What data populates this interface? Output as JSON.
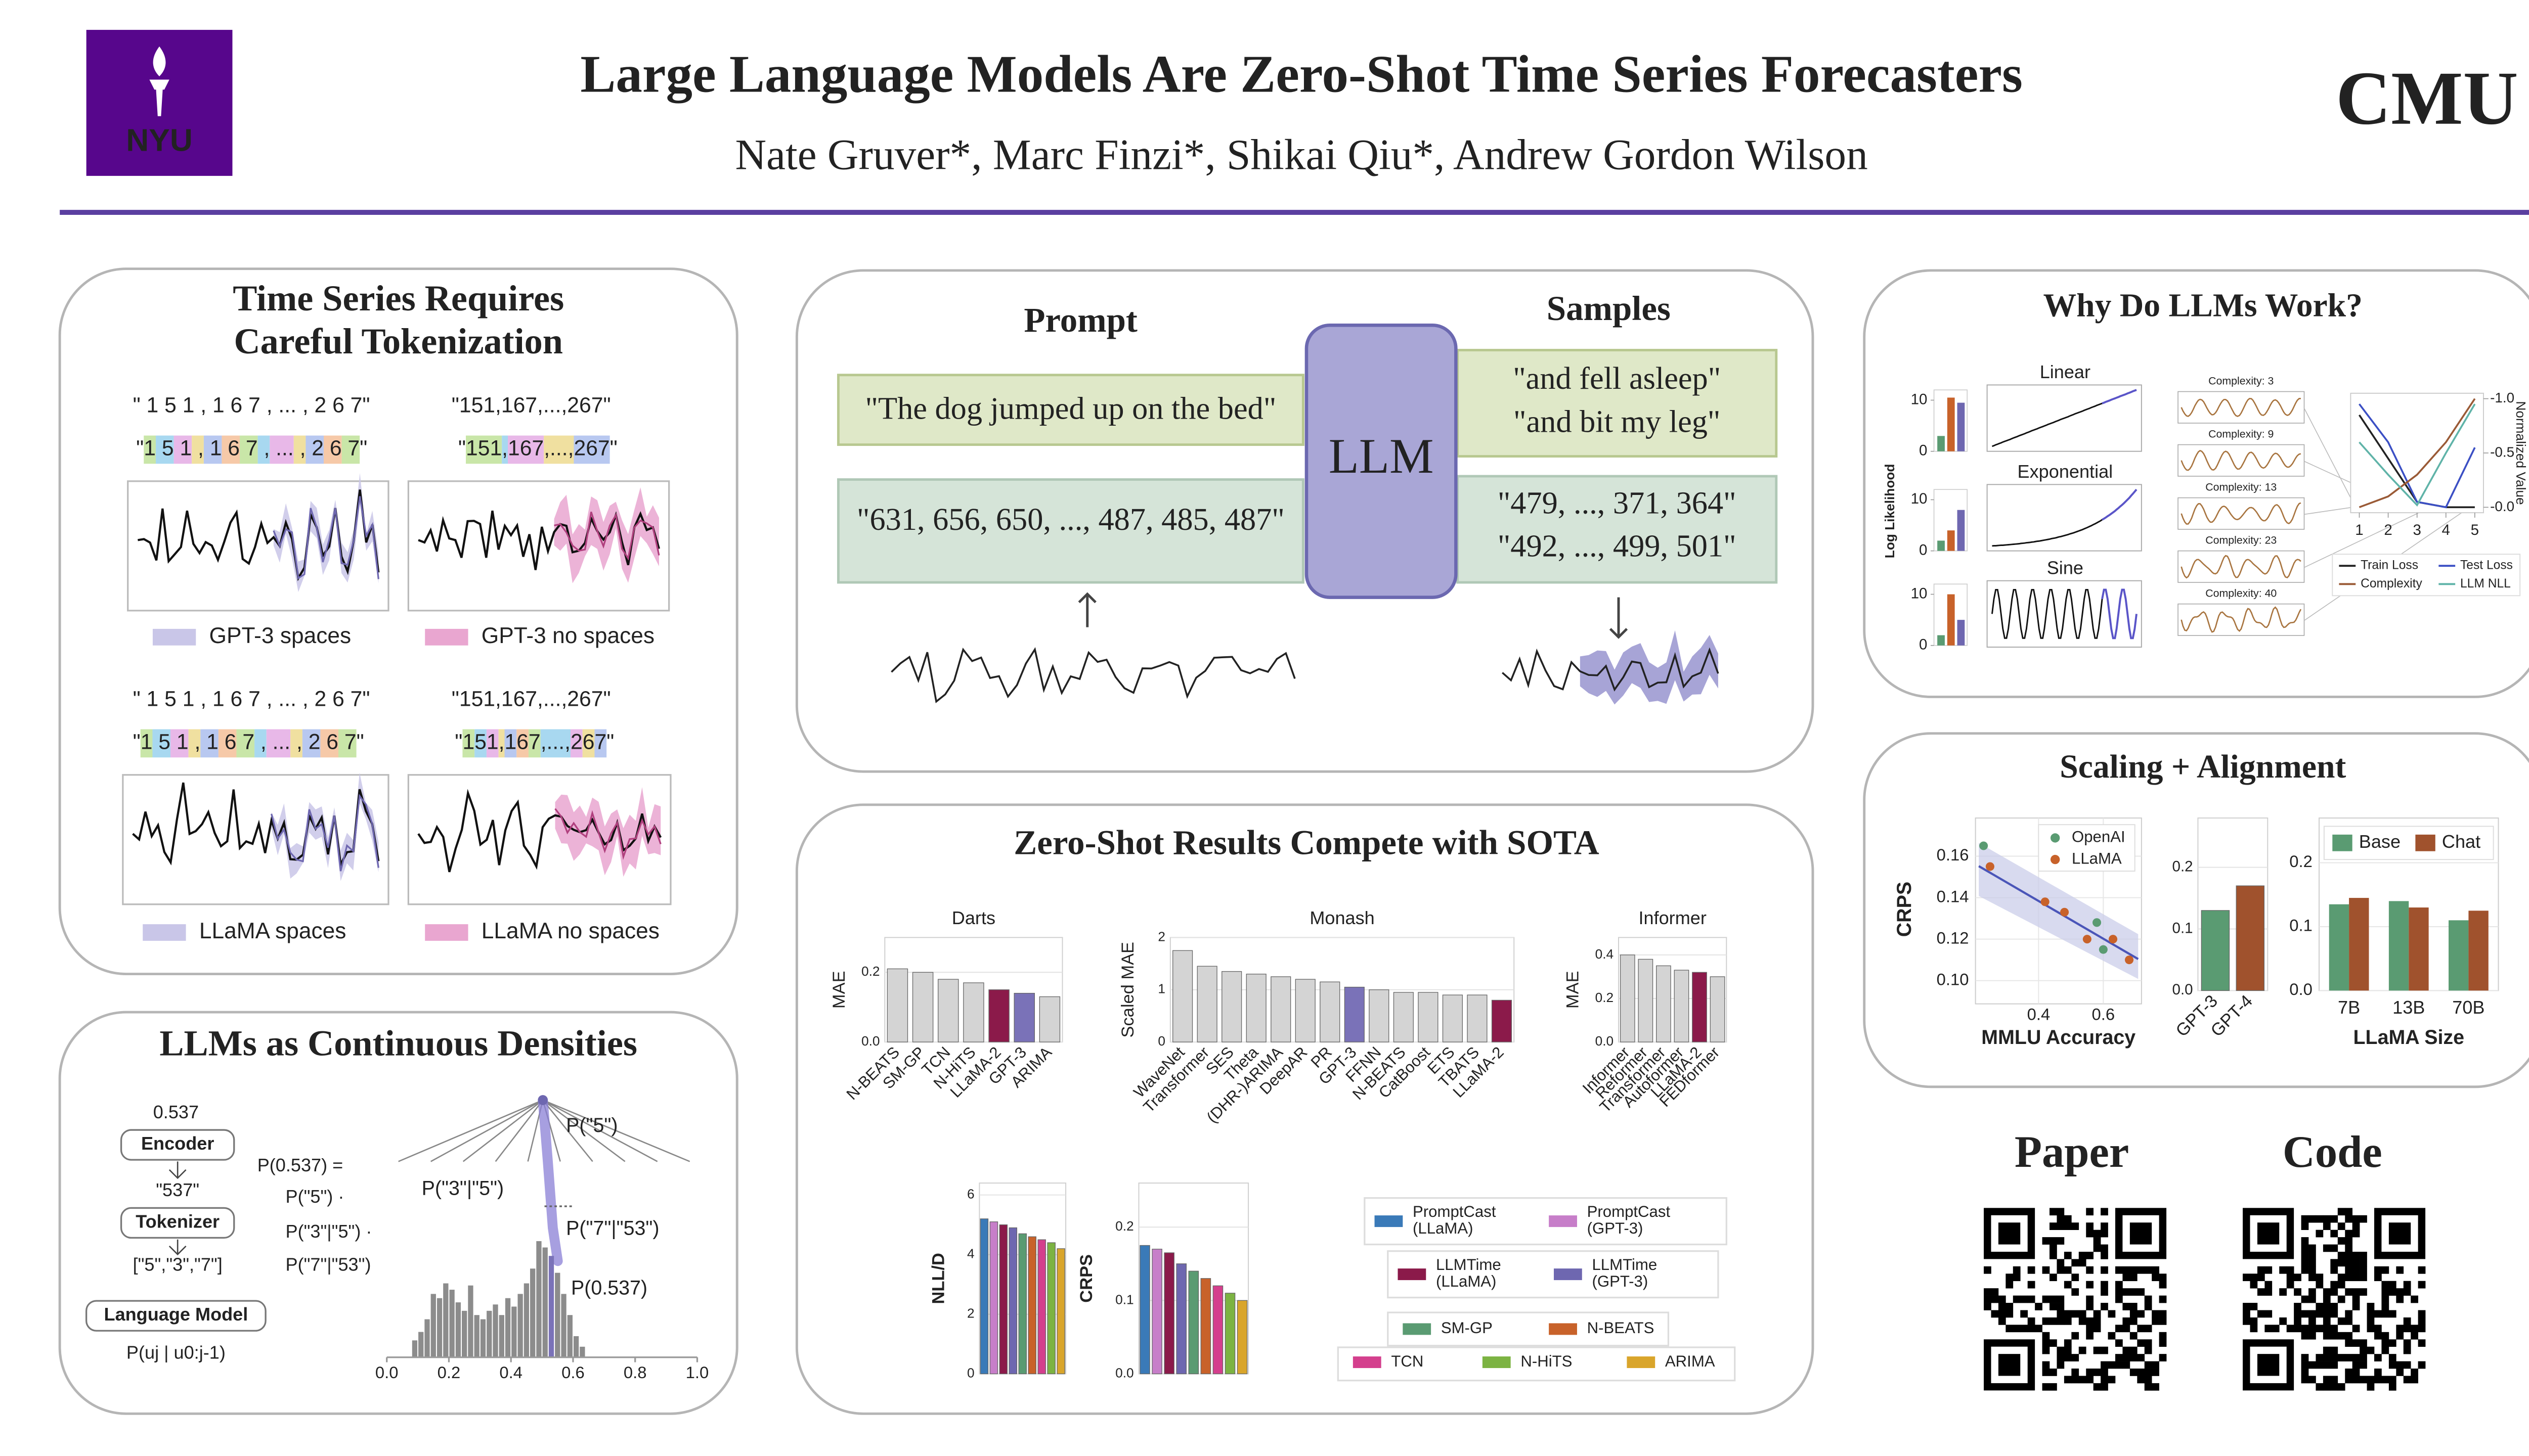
{
  "header": {
    "logo_left": "NYU",
    "title": "Large Language Models Are Zero-Shot Time Series Forecasters",
    "authors": "Nate Gruver*, Marc Finzi*, Shikai Qiu*, Andrew Gordon Wilson",
    "logo_right": "CMU"
  },
  "tokenization": {
    "title": [
      "Time Series Requires",
      "Careful Tokenization"
    ],
    "examples": [
      {
        "raw": "\" 1 5 1 , 1 6 7 , ... , 2 6 7\"",
        "tokens": [
          "\"",
          "1",
          " 5",
          " 1",
          " ,",
          " 1",
          " 6",
          " 7",
          " ,",
          " ...",
          " ,",
          " 2",
          " 6",
          " 7",
          "\""
        ],
        "legend": "GPT-3 spaces"
      },
      {
        "raw": "\"151,167,...,267\"",
        "tokens": [
          "\"",
          "151",
          ",",
          "167",
          ",...,",
          "267",
          "\""
        ],
        "legend": "GPT-3 no spaces"
      },
      {
        "raw": "\" 1 5 1 , 1 6 7 , ... , 2 6 7\"",
        "tokens": [
          "\"",
          "1",
          " 5",
          " 1",
          " ,",
          " 1",
          " 6",
          " 7",
          " ,",
          " ...",
          " ,",
          " 2",
          " 6",
          " 7",
          "\""
        ],
        "legend": "LLaMA spaces"
      },
      {
        "raw": "\"151,167,...,267\"",
        "tokens": [
          "\"",
          "1",
          "5",
          "1",
          ",",
          "1",
          "6",
          "7",
          ",...,",
          "2",
          "6",
          "7",
          "\""
        ],
        "legend": "LLaMA no spaces"
      }
    ]
  },
  "densities": {
    "title": "LLMs as Continuous Densities",
    "input": "0.537",
    "encoder": "Encoder",
    "encoded": "\"537\"",
    "tokenizer": "Tokenizer",
    "tokens": "[\"5\",\"3\",\"7\"]",
    "model": "Language Model",
    "conditional": "P(uj | u0:j-1)",
    "decomposition": [
      "P(0.537) =",
      "P(\"5\") ·",
      "P(\"3\"|\"5\") ·",
      "P(\"7\"|\"53\")"
    ],
    "tree_labels": [
      "P(\"5\")",
      "P(\"3\"|\"5\")",
      "P(\"7\"|\"53\")",
      "P(0.537)"
    ],
    "histogram": {
      "bins": [
        0.08,
        0.1,
        0.12,
        0.14,
        0.16,
        0.18,
        0.2,
        0.22,
        0.24,
        0.26,
        0.28,
        0.3,
        0.32,
        0.34,
        0.36,
        0.38,
        0.4,
        0.42,
        0.44,
        0.46,
        0.48,
        0.5,
        0.52,
        0.54,
        0.56,
        0.58,
        0.6,
        0.62,
        0.64
      ],
      "counts": [
        8,
        12,
        18,
        30,
        28,
        35,
        32,
        26,
        22,
        34,
        20,
        18,
        22,
        25,
        20,
        28,
        24,
        30,
        35,
        42,
        55,
        52,
        48,
        40,
        30,
        20,
        10,
        5
      ],
      "xlim": [
        0,
        1
      ],
      "xticks": [
        {
          "value": 0,
          "label": "0.0"
        },
        0.2,
        0.4,
        0.6,
        0.8,
        {
          "value": 1,
          "label": "1.0"
        }
      ]
    }
  },
  "prompting": {
    "prompt_heading": "Prompt",
    "samples_heading": "Samples",
    "model": "LLM",
    "text_prompt": "\"The dog jumped up on the bed\"",
    "text_samples": [
      "\"and fell asleep\"",
      "\"and bit my leg\""
    ],
    "series_prompt": "\"631, 656, 650, ..., 487, 485, 487\"",
    "series_samples": [
      "\"479, ..., 371, 364\"",
      "\"492, ..., 499, 501\""
    ]
  },
  "results": {
    "title": "Zero-Shot Results Compete with SOTA",
    "darts": {
      "title": "Darts",
      "ylabel": "MAE",
      "categories": [
        "N-BEATS",
        "SM-GP",
        "TCN",
        "N-HiTS",
        "LLaMA-2",
        "GPT-3",
        "ARIMA"
      ],
      "values": [
        0.21,
        0.2,
        0.18,
        0.17,
        0.15,
        0.14,
        0.13
      ],
      "color": "#d4d4d4",
      "highlight": {
        "LLaMA-2": "#8b1a4a",
        "GPT-3": "#7a72b8"
      },
      "ylim": [
        0,
        0.3
      ],
      "yticks": [
        {
          "value": 0,
          "label": "0.0"
        },
        0.2
      ]
    },
    "monash": {
      "title": "Monash",
      "ylabel": "Scaled MAE",
      "categories": [
        "WaveNet",
        "Transformer",
        "SES",
        "Theta",
        "(DHR-)ARIMA",
        "DeepAR",
        "PR",
        "GPT-3",
        "FFNN",
        "N-BEATS",
        "CatBoost",
        "ETS",
        "TBATS",
        "LLaMA-2"
      ],
      "values": [
        1.75,
        1.45,
        1.35,
        1.3,
        1.25,
        1.2,
        1.15,
        1.05,
        1.0,
        0.95,
        0.95,
        0.9,
        0.9,
        0.8
      ],
      "color": "#d4d4d4",
      "highlight": {
        "LLaMA-2": "#8b1a4a",
        "GPT-3": "#7a72b8"
      },
      "ylim": [
        0,
        2
      ],
      "yticks": [
        0,
        1,
        2
      ]
    },
    "informer": {
      "title": "Informer",
      "ylabel": "MAE",
      "categories": [
        "Informer",
        "Reformer",
        "Transformer",
        "Autoformer",
        "LLaMA-2",
        "FEDformer"
      ],
      "values": [
        0.4,
        0.38,
        0.35,
        0.33,
        0.32,
        0.3
      ],
      "color": "#d4d4d4",
      "highlight": {
        "LLaMA-2": "#8b1a4a"
      },
      "ylim": [
        0,
        0.48
      ],
      "yticks": [
        {
          "value": 0,
          "label": "0.0"
        },
        0.2,
        0.4
      ]
    },
    "nll": {
      "ylabel": "NLL/D",
      "values": [
        5.2,
        5.1,
        5.0,
        4.9,
        4.7,
        4.6,
        4.5,
        4.4,
        4.2
      ],
      "ylim": [
        0,
        6.4
      ],
      "yticks": [
        0,
        2,
        4,
        6
      ]
    },
    "crps": {
      "ylabel": "CRPS",
      "values": [
        0.175,
        0.17,
        0.165,
        0.15,
        0.14,
        0.13,
        0.12,
        0.11,
        0.1
      ],
      "ylim": [
        0,
        0.26
      ],
      "yticks": [
        {
          "value": 0,
          "label": "0.0"
        },
        0.1,
        0.2
      ]
    },
    "legend": [
      {
        "name": "PromptCast (LLaMA)",
        "color": "#3a7ab8"
      },
      {
        "name": "PromptCast (GPT-3)",
        "color": "#c77ec9"
      },
      {
        "name": "LLMTime (LLaMA)",
        "color": "#8b1a4a"
      },
      {
        "name": "LLMTime (GPT-3)",
        "color": "#6e67b0"
      },
      {
        "name": "SM-GP",
        "color": "#5a9b72"
      },
      {
        "name": "N-BEATS",
        "color": "#c8622a"
      },
      {
        "name": "TCN",
        "color": "#d43f8d"
      },
      {
        "name": "N-HiTS",
        "color": "#7cb342"
      },
      {
        "name": "ARIMA",
        "color": "#d9a52b"
      }
    ]
  },
  "why": {
    "title": "Why Do LLMs Work?",
    "loglik": {
      "ylabel": "Log Likelihood",
      "colors": [
        "#5a9b72",
        "#c8622a",
        "#6e67b0"
      ],
      "panels": [
        [
          3,
          10.5,
          9.5
        ],
        [
          2,
          4,
          8
        ],
        [
          2,
          10,
          5
        ]
      ],
      "ylim": [
        0,
        12
      ],
      "yticks": [
        0,
        10
      ]
    },
    "curves": [
      "Linear",
      "Exponential",
      "Sine"
    ],
    "complexity": [
      "Complexity: 3",
      "Complexity: 9",
      "Complexity: 13",
      "Complexity: 23",
      "Complexity: 40"
    ],
    "normalized": {
      "ylabel": "Normalized Value",
      "x": [
        1,
        2,
        3,
        4,
        5
      ],
      "xlim": [
        0.7,
        5.3
      ],
      "xticks": [
        1,
        2,
        3,
        4,
        5
      ],
      "ylim": [
        0.05,
        -1.05
      ],
      "yticks": [
        {
          "value": -1,
          "label": "-1.0"
        },
        {
          "value": -0.5,
          "label": "-0.5"
        },
        {
          "value": 0,
          "label": "-0.0"
        }
      ],
      "series": [
        {
          "name": "Train Loss",
          "color": "#222222",
          "values": [
            -0.85,
            -0.45,
            -0.05,
            0,
            0
          ]
        },
        {
          "name": "Test Loss",
          "color": "#3b4fc4",
          "values": [
            -0.95,
            -0.6,
            -0.05,
            0,
            -0.55
          ]
        },
        {
          "name": "Complexity",
          "color": "#9a5a36",
          "values": [
            0,
            -0.1,
            -0.3,
            -0.6,
            -1
          ]
        },
        {
          "name": "LLM NLL",
          "color": "#5fb3a8",
          "values": [
            -0.6,
            -0.3,
            -0.02,
            -0.5,
            -0.95
          ]
        }
      ]
    }
  },
  "scaling": {
    "title": "Scaling + Alignment",
    "mmlu": {
      "xlabel": "MMLU Accuracy",
      "ylabel": "CRPS",
      "xlim": [
        0.205,
        0.718
      ],
      "ylim": [
        0.0888,
        0.1784
      ],
      "xticks": [
        0.4,
        0.6
      ],
      "yticks": [
        {
          "value": 0.1,
          "label": "0.10"
        },
        {
          "value": 0.12,
          "label": "0.12"
        },
        {
          "value": 0.14,
          "label": "0.14"
        },
        {
          "value": 0.16,
          "label": "0.16"
        }
      ],
      "series": [
        {
          "name": "OpenAI",
          "color": "#5a9b72",
          "x": [
            0.23,
            0.58,
            0.6
          ],
          "values": [
            0.165,
            0.128,
            0.115
          ]
        },
        {
          "name": "LLaMA",
          "color": "#c8622a",
          "x": [
            0.25,
            0.42,
            0.48,
            0.55,
            0.63,
            0.68
          ],
          "values": [
            0.155,
            0.138,
            0.133,
            0.12,
            0.12,
            0.11
          ]
        }
      ]
    },
    "gpt": {
      "categories": [
        "GPT-3",
        "GPT-4"
      ],
      "values": [
        0.13,
        0.17
      ],
      "colors": [
        "#5a9b72",
        "#a0522d"
      ],
      "ylim": [
        0,
        0.28
      ],
      "yticks": [
        {
          "value": 0,
          "label": "0.0"
        },
        0.1,
        0.2
      ]
    },
    "llama": {
      "xlabel": "LLaMA Size",
      "categories": [
        "7B",
        "13B",
        "70B"
      ],
      "ylim": [
        0,
        0.27
      ],
      "yticks": [
        {
          "value": 0,
          "label": "0.0"
        },
        0.1,
        0.2
      ],
      "series": [
        {
          "name": "Base",
          "color": "#5a9b72",
          "values": [
            0.135,
            0.14,
            0.11
          ]
        },
        {
          "name": "Chat",
          "color": "#a0522d",
          "values": [
            0.145,
            0.13,
            0.125
          ]
        }
      ]
    }
  },
  "links": {
    "paper": "Paper",
    "code": "Code"
  }
}
